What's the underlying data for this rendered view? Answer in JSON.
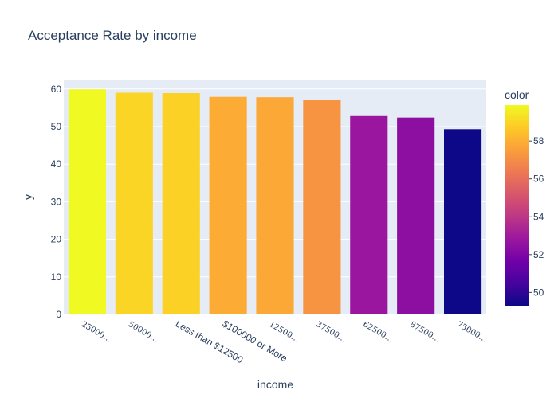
{
  "chart_data": {
    "type": "bar",
    "title": "Acceptance Rate by income",
    "xlabel": "income",
    "ylabel": "y",
    "ylim": [
      0,
      62.5
    ],
    "yticks": [
      0,
      10,
      20,
      30,
      40,
      50,
      60
    ],
    "categories": [
      "25000…",
      "50000…",
      "Less than $12500",
      "$100000 or More",
      "12500…",
      "37500…",
      "62500…",
      "87500…",
      "75000…"
    ],
    "values": [
      59.9,
      59.0,
      58.9,
      57.9,
      57.8,
      57.2,
      52.8,
      52.4,
      49.3
    ],
    "grid": true,
    "colorbar": {
      "title": "color",
      "ticks": [
        50,
        52,
        54,
        56,
        58
      ],
      "range": [
        49.3,
        59.9
      ]
    }
  }
}
